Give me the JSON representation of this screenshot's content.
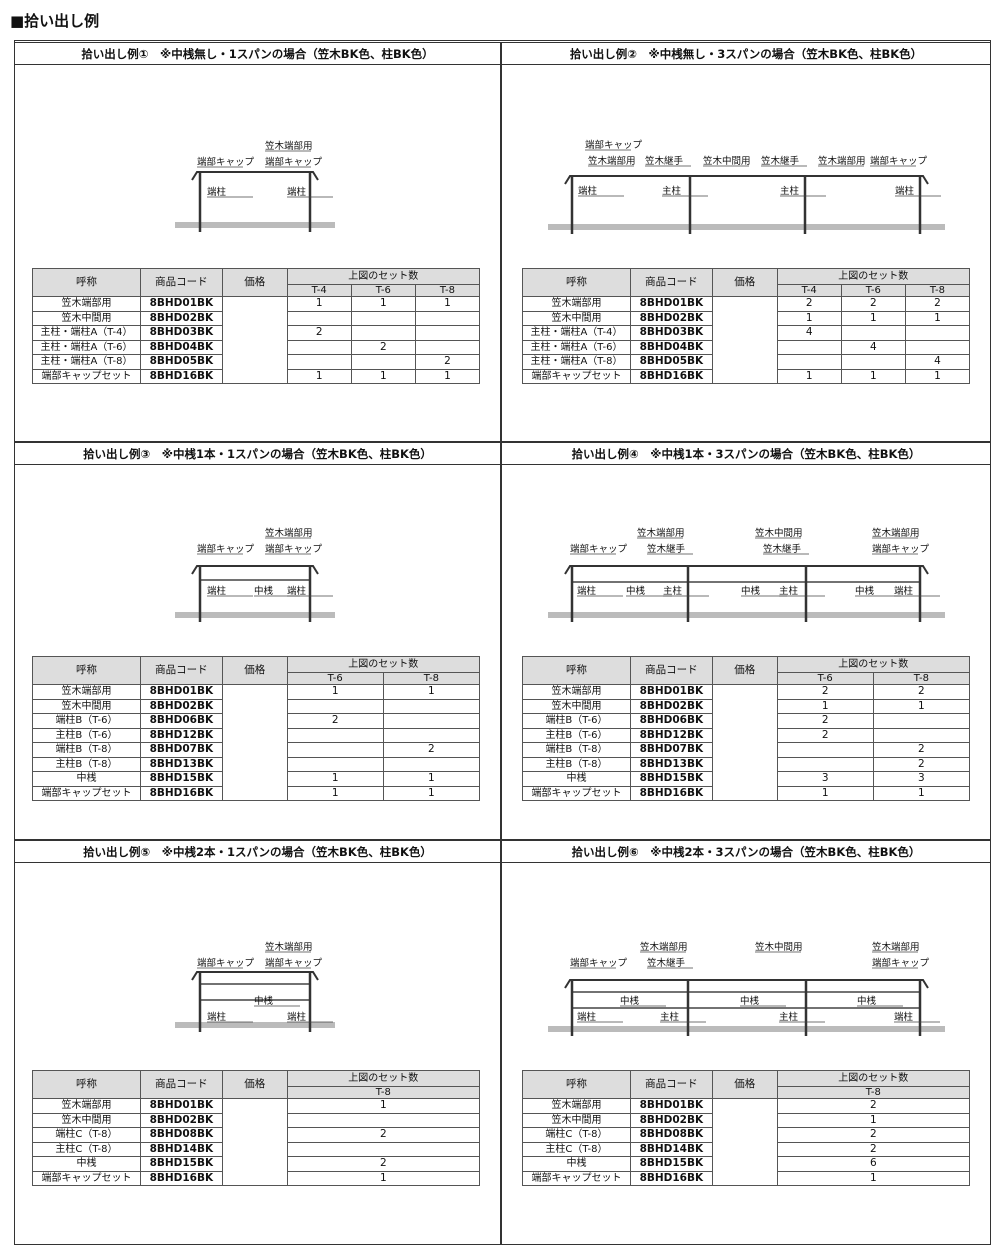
{
  "page_title": "■拾い出し例",
  "headers": {
    "name": "呼称",
    "code": "商品コード",
    "price": "価格",
    "sets": "上図のセット数"
  },
  "panels": [
    {
      "title": "拾い出し例①　※中桟無し・1スパンの場合（笠木BK色、柱BK色）",
      "labels": [
        "端部キャップ",
        "笠木端部用",
        "端部キャップ",
        "端柱",
        "端柱"
      ],
      "cols": [
        "T-4",
        "T-6",
        "T-8"
      ],
      "rows": [
        [
          "笠木端部用",
          "8BHD01BK",
          [
            "1",
            "1",
            "1"
          ]
        ],
        [
          "笠木中間用",
          "8BHD02BK",
          [
            "",
            "",
            ""
          ]
        ],
        [
          "主柱・端柱A（T-4）",
          "8BHD03BK",
          [
            "2",
            "",
            ""
          ]
        ],
        [
          "主柱・端柱A（T-6）",
          "8BHD04BK",
          [
            "",
            "2",
            ""
          ]
        ],
        [
          "主柱・端柱A（T-8）",
          "8BHD05BK",
          [
            "",
            "",
            "2"
          ]
        ],
        [
          "端部キャップセット",
          "8BHD16BK",
          [
            "1",
            "1",
            "1"
          ]
        ]
      ]
    },
    {
      "title": "拾い出し例②　※中桟無し・3スパンの場合（笠木BK色、柱BK色）",
      "labels": [
        "端部キャップ",
        "笠木端部用",
        "笠木継手",
        "笠木中間用",
        "笠木継手",
        "笠木端部用",
        "端部キャップ",
        "端柱",
        "主柱",
        "主柱",
        "端柱"
      ],
      "cols": [
        "T-4",
        "T-6",
        "T-8"
      ],
      "rows": [
        [
          "笠木端部用",
          "8BHD01BK",
          [
            "2",
            "2",
            "2"
          ]
        ],
        [
          "笠木中間用",
          "8BHD02BK",
          [
            "1",
            "1",
            "1"
          ]
        ],
        [
          "主柱・端柱A（T-4）",
          "8BHD03BK",
          [
            "4",
            "",
            ""
          ]
        ],
        [
          "主柱・端柱A（T-6）",
          "8BHD04BK",
          [
            "",
            "4",
            ""
          ]
        ],
        [
          "主柱・端柱A（T-8）",
          "8BHD05BK",
          [
            "",
            "",
            "4"
          ]
        ],
        [
          "端部キャップセット",
          "8BHD16BK",
          [
            "1",
            "1",
            "1"
          ]
        ]
      ]
    },
    {
      "title": "拾い出し例③　※中桟1本・1スパンの場合（笠木BK色、柱BK色）",
      "labels": [
        "端部キャップ",
        "笠木端部用",
        "端部キャップ",
        "端柱",
        "中桟",
        "端柱"
      ],
      "cols": [
        "T-6",
        "T-8"
      ],
      "rows": [
        [
          "笠木端部用",
          "8BHD01BK",
          [
            "1",
            "1"
          ]
        ],
        [
          "笠木中間用",
          "8BHD02BK",
          [
            "",
            ""
          ]
        ],
        [
          "端柱B（T-6）",
          "8BHD06BK",
          [
            "2",
            ""
          ]
        ],
        [
          "主柱B（T-6）",
          "8BHD12BK",
          [
            "",
            ""
          ]
        ],
        [
          "端柱B（T-8）",
          "8BHD07BK",
          [
            "",
            "2"
          ]
        ],
        [
          "主柱B（T-8）",
          "8BHD13BK",
          [
            "",
            ""
          ]
        ],
        [
          "中桟",
          "8BHD15BK",
          [
            "1",
            "1"
          ]
        ],
        [
          "端部キャップセット",
          "8BHD16BK",
          [
            "1",
            "1"
          ]
        ]
      ]
    },
    {
      "title": "拾い出し例④　※中桟1本・3スパンの場合（笠木BK色、柱BK色）",
      "labels": [
        "笠木端部用",
        "端部キャップ",
        "笠木継手",
        "笠木中間用",
        "笠木継手",
        "笠木端部用",
        "端部キャップ",
        "端柱",
        "中桟",
        "主柱",
        "中桟",
        "主柱",
        "中桟",
        "端柱"
      ],
      "cols": [
        "T-6",
        "T-8"
      ],
      "rows": [
        [
          "笠木端部用",
          "8BHD01BK",
          [
            "2",
            "2"
          ]
        ],
        [
          "笠木中間用",
          "8BHD02BK",
          [
            "1",
            "1"
          ]
        ],
        [
          "端柱B（T-6）",
          "8BHD06BK",
          [
            "2",
            ""
          ]
        ],
        [
          "主柱B（T-6）",
          "8BHD12BK",
          [
            "2",
            ""
          ]
        ],
        [
          "端柱B（T-8）",
          "8BHD07BK",
          [
            "",
            "2"
          ]
        ],
        [
          "主柱B（T-8）",
          "8BHD13BK",
          [
            "",
            "2"
          ]
        ],
        [
          "中桟",
          "8BHD15BK",
          [
            "3",
            "3"
          ]
        ],
        [
          "端部キャップセット",
          "8BHD16BK",
          [
            "1",
            "1"
          ]
        ]
      ]
    },
    {
      "title": "拾い出し例⑤　※中桟2本・1スパンの場合（笠木BK色、柱BK色）",
      "labels": [
        "笠木端部用",
        "端部キャップ",
        "端部キャップ",
        "中桟",
        "端柱",
        "端柱"
      ],
      "cols": [
        "T-8"
      ],
      "rows": [
        [
          "笠木端部用",
          "8BHD01BK",
          [
            "1"
          ]
        ],
        [
          "笠木中間用",
          "8BHD02BK",
          [
            ""
          ]
        ],
        [
          "端柱C（T-8）",
          "8BHD08BK",
          [
            "2"
          ]
        ],
        [
          "主柱C（T-8）",
          "8BHD14BK",
          [
            ""
          ]
        ],
        [
          "中桟",
          "8BHD15BK",
          [
            "2"
          ]
        ],
        [
          "端部キャップセット",
          "8BHD16BK",
          [
            "1"
          ]
        ]
      ]
    },
    {
      "title": "拾い出し例⑥　※中桟2本・3スパンの場合（笠木BK色、柱BK色）",
      "labels": [
        "笠木端部用",
        "笠木中間用",
        "笠木端部用",
        "端部キャップ",
        "笠木継手",
        "端部キャップ",
        "中桟",
        "中桟",
        "中桟",
        "端柱",
        "主柱",
        "主柱",
        "端柱"
      ],
      "cols": [
        "T-8"
      ],
      "rows": [
        [
          "笠木端部用",
          "8BHD01BK",
          [
            "2"
          ]
        ],
        [
          "笠木中間用",
          "8BHD02BK",
          [
            "1"
          ]
        ],
        [
          "端柱C（T-8）",
          "8BHD08BK",
          [
            "2"
          ]
        ],
        [
          "主柱C（T-8）",
          "8BHD14BK",
          [
            "2"
          ]
        ],
        [
          "中桟",
          "8BHD15BK",
          [
            "6"
          ]
        ],
        [
          "端部キャップセット",
          "8BHD16BK",
          [
            "1"
          ]
        ]
      ]
    }
  ]
}
